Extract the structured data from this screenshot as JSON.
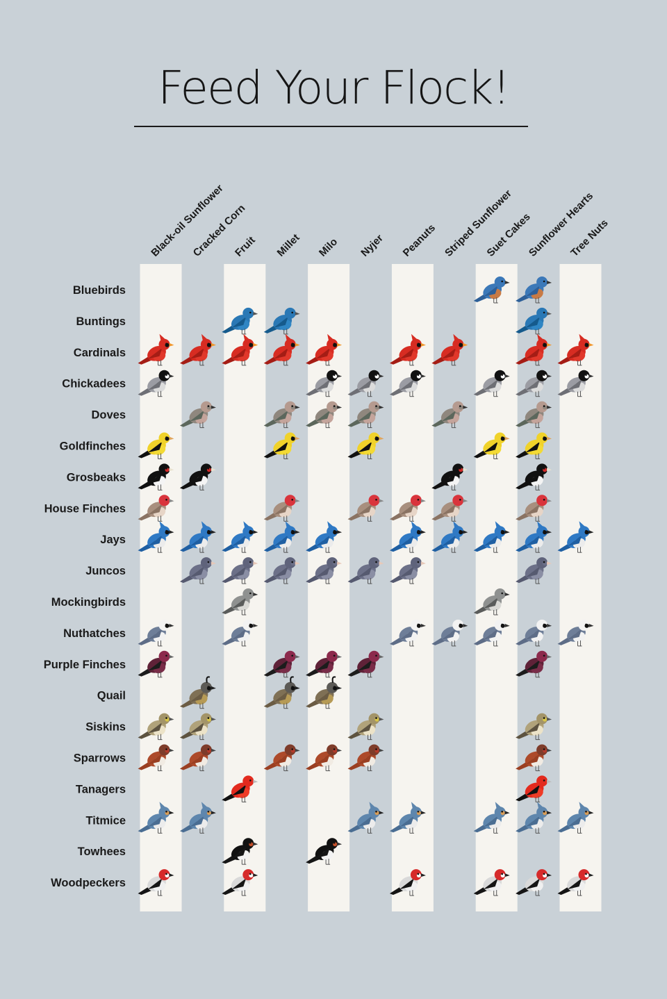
{
  "title": "Feed Your Flock!",
  "chart_data": {
    "type": "table",
    "columns": [
      "Black-oil Sunflower",
      "Cracked Corn",
      "Fruit",
      "Millet",
      "Milo",
      "Nyjer",
      "Peanuts",
      "Striped Sunflower",
      "Suet Cakes",
      "Sunflower Hearts",
      "Tree Nuts"
    ],
    "rows": [
      {
        "bird": "Bluebirds",
        "feeds": [
          "Suet Cakes",
          "Sunflower Hearts"
        ]
      },
      {
        "bird": "Buntings",
        "feeds": [
          "Fruit",
          "Millet",
          "Sunflower Hearts"
        ]
      },
      {
        "bird": "Cardinals",
        "feeds": [
          "Black-oil Sunflower",
          "Cracked Corn",
          "Fruit",
          "Millet",
          "Milo",
          "Peanuts",
          "Striped Sunflower",
          "Sunflower Hearts",
          "Tree Nuts"
        ]
      },
      {
        "bird": "Chickadees",
        "feeds": [
          "Black-oil Sunflower",
          "Milo",
          "Nyjer",
          "Peanuts",
          "Suet Cakes",
          "Sunflower Hearts",
          "Tree Nuts"
        ]
      },
      {
        "bird": "Doves",
        "feeds": [
          "Cracked Corn",
          "Millet",
          "Milo",
          "Nyjer",
          "Striped Sunflower",
          "Sunflower Hearts"
        ]
      },
      {
        "bird": "Goldfinches",
        "feeds": [
          "Black-oil Sunflower",
          "Millet",
          "Nyjer",
          "Suet Cakes",
          "Sunflower Hearts"
        ]
      },
      {
        "bird": "Grosbeaks",
        "feeds": [
          "Black-oil Sunflower",
          "Cracked Corn",
          "Striped Sunflower",
          "Sunflower Hearts"
        ]
      },
      {
        "bird": "House Finches",
        "feeds": [
          "Black-oil Sunflower",
          "Millet",
          "Nyjer",
          "Peanuts",
          "Striped Sunflower",
          "Sunflower Hearts"
        ]
      },
      {
        "bird": "Jays",
        "feeds": [
          "Black-oil Sunflower",
          "Cracked Corn",
          "Fruit",
          "Millet",
          "Milo",
          "Peanuts",
          "Striped Sunflower",
          "Suet Cakes",
          "Sunflower Hearts",
          "Tree Nuts"
        ]
      },
      {
        "bird": "Juncos",
        "feeds": [
          "Cracked Corn",
          "Fruit",
          "Millet",
          "Milo",
          "Nyjer",
          "Peanuts",
          "Sunflower Hearts"
        ]
      },
      {
        "bird": "Mockingbirds",
        "feeds": [
          "Fruit",
          "Suet Cakes"
        ]
      },
      {
        "bird": "Nuthatches",
        "feeds": [
          "Black-oil Sunflower",
          "Fruit",
          "Peanuts",
          "Striped Sunflower",
          "Suet Cakes",
          "Sunflower Hearts",
          "Tree Nuts"
        ]
      },
      {
        "bird": "Purple Finches",
        "feeds": [
          "Black-oil Sunflower",
          "Millet",
          "Milo",
          "Nyjer",
          "Sunflower Hearts"
        ]
      },
      {
        "bird": "Quail",
        "feeds": [
          "Cracked Corn",
          "Millet",
          "Milo"
        ]
      },
      {
        "bird": "Siskins",
        "feeds": [
          "Black-oil Sunflower",
          "Cracked Corn",
          "Nyjer",
          "Sunflower Hearts"
        ]
      },
      {
        "bird": "Sparrows",
        "feeds": [
          "Black-oil Sunflower",
          "Cracked Corn",
          "Millet",
          "Milo",
          "Nyjer",
          "Sunflower Hearts"
        ]
      },
      {
        "bird": "Tanagers",
        "feeds": [
          "Fruit",
          "Sunflower Hearts"
        ]
      },
      {
        "bird": "Titmice",
        "feeds": [
          "Black-oil Sunflower",
          "Cracked Corn",
          "Nyjer",
          "Peanuts",
          "Suet Cakes",
          "Sunflower Hearts",
          "Tree Nuts"
        ]
      },
      {
        "bird": "Towhees",
        "feeds": [
          "Fruit",
          "Milo"
        ]
      },
      {
        "bird": "Woodpeckers",
        "feeds": [
          "Black-oil Sunflower",
          "Fruit",
          "Peanuts",
          "Suet Cakes",
          "Sunflower Hearts",
          "Tree Nuts"
        ]
      }
    ]
  },
  "colors": {
    "background": "#c9d1d7",
    "column_stripe": "#f6f4ef",
    "text": "#1a1a1a"
  },
  "birds": {
    "Bluebirds": {
      "body": "#3b78b8",
      "belly": "#c87a45",
      "head": "#3b78b8",
      "wing": "#2d5f98",
      "beak": "#333333",
      "mark": "#3b78b8"
    },
    "Buntings": {
      "body": "#2a78b5",
      "belly": "#2f86c4",
      "head": "#2a78b5",
      "wing": "#155a8c",
      "beak": "#555555",
      "mark": "#2a78b5"
    },
    "Cardinals": {
      "body": "#d72c22",
      "belly": "#e1382b",
      "head": "#d72c22",
      "wing": "#a51d15",
      "beak": "#f0952a",
      "mark": "#111111"
    },
    "Chickadees": {
      "body": "#9b9ca3",
      "belly": "#dcdcdc",
      "head": "#111111",
      "wing": "#6e6f75",
      "beak": "#333333",
      "mark": "#ffffff"
    },
    "Doves": {
      "body": "#8f877e",
      "belly": "#c4a49b",
      "head": "#b59a8f",
      "wing": "#5c675c",
      "beak": "#333333",
      "mark": "#8f877e"
    },
    "Goldfinches": {
      "body": "#f0d22a",
      "belly": "#f3da35",
      "head": "#f0d22a",
      "wing": "#111111",
      "beak": "#e0a45a",
      "mark": "#111111"
    },
    "Grosbeaks": {
      "body": "#111111",
      "belly": "#f4f4f4",
      "head": "#111111",
      "wing": "#111111",
      "beak": "#e9e2d0",
      "mark": "#cf2a2a"
    },
    "House Finches": {
      "body": "#a88f7e",
      "belly": "#e7d5c7",
      "head": "#d9343c",
      "wing": "#8a7363",
      "beak": "#888888",
      "mark": "#d9343c"
    },
    "Jays": {
      "body": "#2f79c4",
      "belly": "#ececec",
      "head": "#2f79c4",
      "wing": "#1f5fa2",
      "beak": "#222222",
      "mark": "#111111"
    },
    "Juncos": {
      "body": "#6c7088",
      "belly": "#8a8ea4",
      "head": "#5f637b",
      "wing": "#565a70",
      "beak": "#e7c8b8",
      "mark": "#6c7088"
    },
    "Mockingbirds": {
      "body": "#8f9190",
      "belly": "#d9d9d5",
      "head": "#8f9190",
      "wing": "#5a5c5b",
      "beak": "#333333",
      "mark": "#8f9190"
    },
    "Nuthatches": {
      "body": "#6e7e98",
      "belly": "#f2f2f2",
      "head": "#f2f2f2",
      "wing": "#5e6d87",
      "beak": "#333333",
      "mark": "#111111"
    },
    "Purple Finches": {
      "body": "#5f2238",
      "belly": "#7a2c48",
      "head": "#8c2a4c",
      "wing": "#1c1c1c",
      "beak": "#666666",
      "mark": "#8c2a4c"
    },
    "Quail": {
      "body": "#7f7055",
      "belly": "#b69a55",
      "head": "#5c5a56",
      "wing": "#6b5c44",
      "beak": "#222222",
      "mark": "#111111"
    },
    "Siskins": {
      "body": "#b0a27a",
      "belly": "#ece3c8",
      "head": "#a39468",
      "wing": "#5d5340",
      "beak": "#555555",
      "mark": "#d8c64a"
    },
    "Sparrows": {
      "body": "#ad4a2a",
      "belly": "#f1ebe3",
      "head": "#7e3c2a",
      "wing": "#9a3f22",
      "beak": "#444444",
      "mark": "#b33a2a"
    },
    "Tanagers": {
      "body": "#e32a1e",
      "belly": "#ef3b26",
      "head": "#e32a1e",
      "wing": "#111111",
      "beak": "#bbbbbb",
      "mark": "#e32a1e"
    },
    "Titmice": {
      "body": "#5e86ad",
      "belly": "#ececec",
      "head": "#5e86ad",
      "wing": "#4a6d92",
      "beak": "#222222",
      "mark": "#d79c57"
    },
    "Towhees": {
      "body": "#111111",
      "belly": "#f3f3f3",
      "head": "#111111",
      "wing": "#161616",
      "beak": "#333333",
      "mark": "#c4502a"
    },
    "Woodpeckers": {
      "body": "#d9d9d9",
      "belly": "#f0f0f0",
      "head": "#d62a2a",
      "wing": "#151515",
      "beak": "#222222",
      "mark": "#ffffff"
    }
  }
}
